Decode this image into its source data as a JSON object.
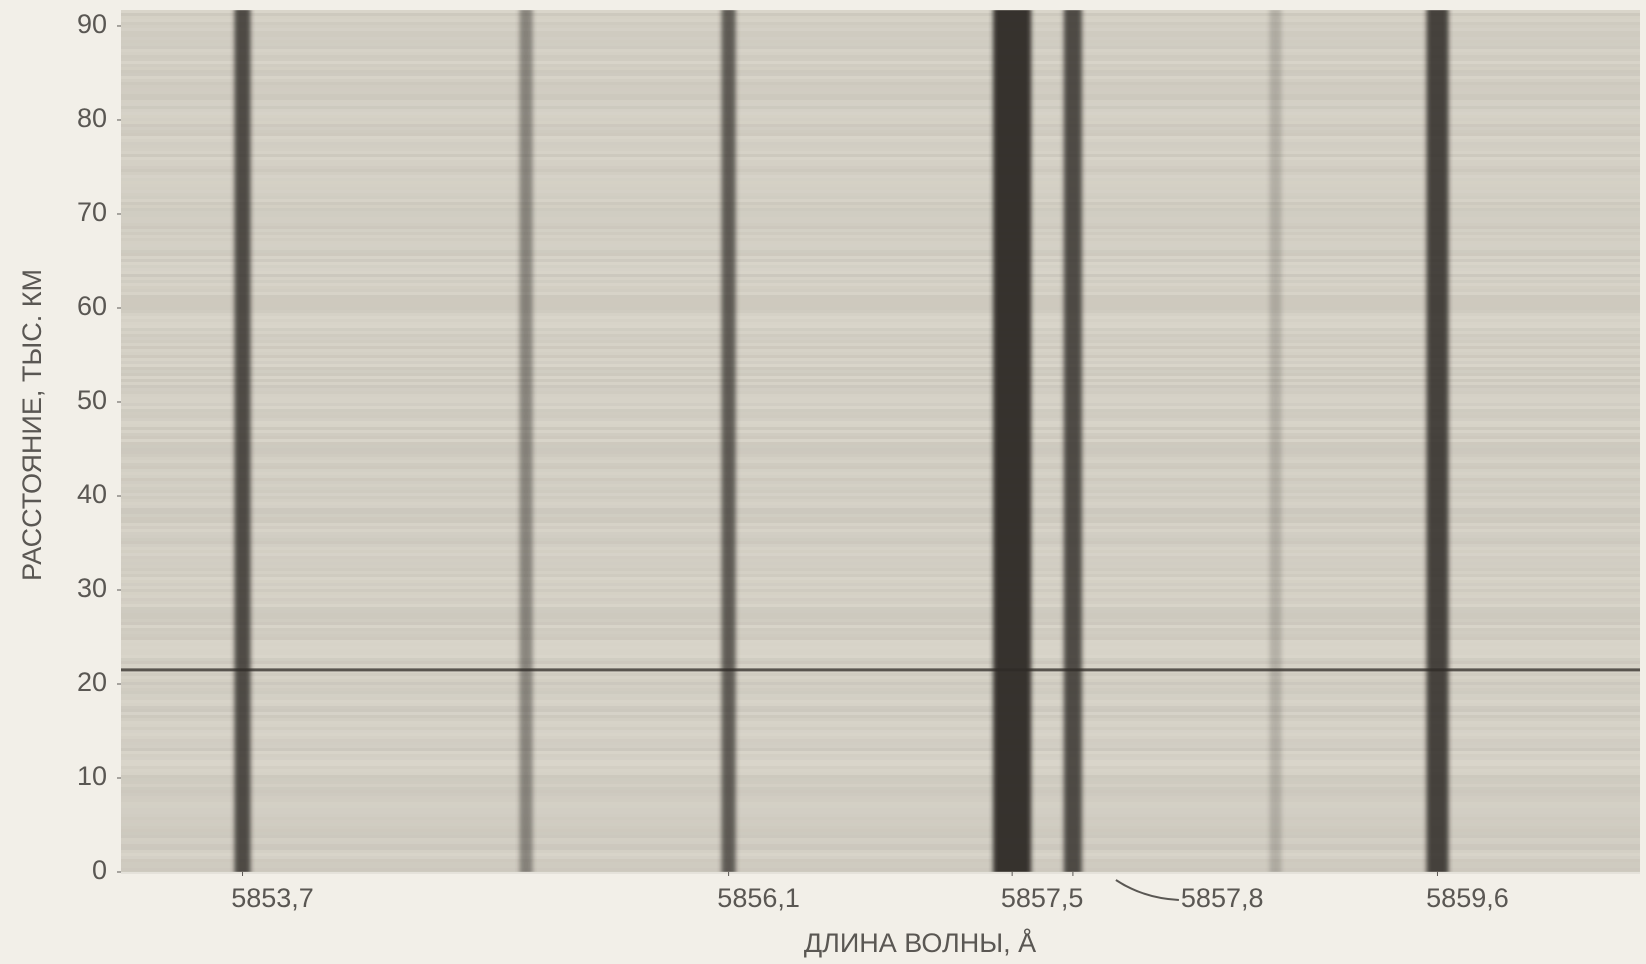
{
  "chart_data": {
    "type": "spectrum",
    "x_label": "ДЛИНА ВОЛНЫ, Å",
    "y_label": "РАССТОЯНИЕ, ТЫС. КМ",
    "xlim": [
      5853.1,
      5860.6
    ],
    "xticks": [
      {
        "value": 5853.7,
        "label": "5853,7"
      },
      {
        "value": 5856.1,
        "label": "5856,1"
      },
      {
        "value": 5857.5,
        "label": "5857,5"
      },
      {
        "value": 5857.8,
        "label": "5857,8"
      },
      {
        "value": 5859.6,
        "label": "5859,6"
      }
    ],
    "ylim": [
      0,
      91.7
    ],
    "yticks": [
      0,
      10,
      20,
      30,
      40,
      50,
      60,
      70,
      80,
      90
    ],
    "x": [
      5853.7,
      5855.1,
      5856.1,
      5857.5,
      5857.8,
      5858.8,
      5859.6
    ],
    "values": [
      0.8,
      0.45,
      0.7,
      0.95,
      0.8,
      0.2,
      0.85
    ],
    "hline": 21.5,
    "color": "#2e2a26"
  }
}
